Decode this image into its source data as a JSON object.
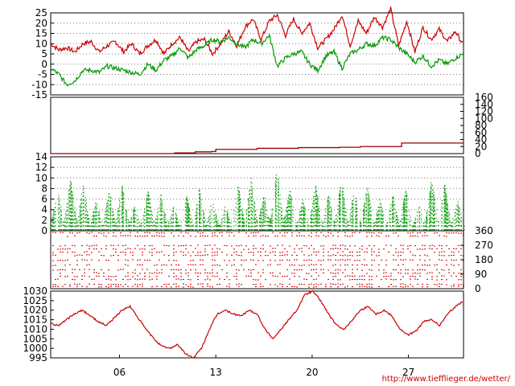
{
  "chart_data": [
    {
      "id": "temperature",
      "type": "line",
      "ylim": [
        -15,
        25
      ],
      "yticks": [
        "25",
        "20",
        "15",
        "10",
        "5",
        "0",
        "-5",
        "-10",
        "-15"
      ],
      "grid": true,
      "series": [
        {
          "color": "#cc0000",
          "values": [
            10,
            7,
            8,
            6,
            10,
            11,
            6,
            9,
            11,
            6,
            10,
            5,
            9,
            12,
            5,
            10,
            13,
            6,
            11,
            12,
            5,
            10,
            16,
            9,
            18,
            22,
            12,
            21,
            24,
            14,
            22,
            15,
            20,
            8,
            12,
            17,
            24,
            9,
            21,
            15,
            23,
            18,
            27,
            9,
            21,
            6,
            18,
            12,
            17,
            11,
            16,
            9
          ]
        },
        {
          "color": "#009900",
          "values": [
            -2,
            -5,
            -10,
            -8,
            -3,
            -3,
            -4,
            -1,
            -2,
            -3,
            -4,
            -5,
            0,
            -3,
            2,
            4,
            8,
            3,
            7,
            9,
            12,
            11,
            13,
            10,
            8,
            12,
            10,
            14,
            -1,
            3,
            5,
            6,
            0,
            -3,
            4,
            6,
            -2,
            5,
            7,
            10,
            9,
            13,
            12,
            8,
            5,
            1,
            4,
            -1,
            2,
            0,
            3,
            5
          ]
        }
      ]
    },
    {
      "id": "rain",
      "type": "line",
      "ylim": [
        0,
        160
      ],
      "yticks": [
        "160",
        "140",
        "120",
        "100",
        "80",
        "60",
        "40",
        "20",
        "0"
      ],
      "grid": false,
      "series": [
        {
          "color": "#990000",
          "x": [
            0,
            0.29,
            0.3,
            0.35,
            0.39,
            0.4,
            0.5,
            0.6,
            0.7,
            0.75,
            0.84,
            0.85,
            0.9,
            1
          ],
          "values": [
            0,
            0,
            2,
            5,
            6,
            12,
            15,
            17,
            18,
            20,
            20,
            30,
            30,
            33
          ]
        }
      ]
    },
    {
      "id": "wind",
      "type": "scatter",
      "ylim": [
        0,
        14
      ],
      "yticks": [
        "14",
        "12",
        "10",
        "8",
        "6",
        "4",
        "2",
        "0"
      ],
      "grid": true,
      "series": [
        {
          "color": "#009900",
          "name": ""
        }
      ],
      "peaks": [
        8,
        10,
        9,
        6,
        8,
        9,
        5,
        8,
        7,
        5,
        7,
        8,
        6,
        5,
        9,
        10,
        7,
        12,
        8,
        6,
        9,
        7,
        10,
        8,
        9,
        6,
        7,
        8,
        5,
        10,
        9,
        6
      ]
    },
    {
      "id": "wind-direction",
      "type": "scatter",
      "ylim": [
        0,
        360
      ],
      "yticks": [
        "360",
        "270",
        "180",
        "90",
        "0"
      ],
      "grid": false,
      "series": [
        {
          "color": "#cc0000"
        }
      ]
    },
    {
      "id": "pressure",
      "type": "line",
      "ylim": [
        995,
        1030
      ],
      "yticks": [
        "1030",
        "1025",
        "1020",
        "1015",
        "1010",
        "1005",
        "1000",
        "995"
      ],
      "grid": false,
      "series": [
        {
          "color": "#cc0000",
          "values": [
            1013,
            1012,
            1015,
            1018,
            1020,
            1017,
            1014,
            1012,
            1016,
            1020,
            1022,
            1016,
            1010,
            1005,
            1001,
            1000,
            1002,
            997,
            995,
            1000,
            1010,
            1018,
            1020,
            1018,
            1017,
            1020,
            1018,
            1010,
            1005,
            1010,
            1015,
            1020,
            1028,
            1030,
            1025,
            1018,
            1012,
            1010,
            1015,
            1020,
            1022,
            1018,
            1020,
            1017,
            1010,
            1007,
            1009,
            1014,
            1015,
            1012,
            1018,
            1022,
            1025
          ]
        }
      ]
    }
  ],
  "xaxis": {
    "tick_labels": [
      "06",
      "13",
      "20",
      "27"
    ],
    "tick_days": [
      6,
      13,
      20,
      27
    ],
    "day_range": [
      1,
      31
    ]
  },
  "credit": "http://www.tiefflieger.de/wetter/"
}
